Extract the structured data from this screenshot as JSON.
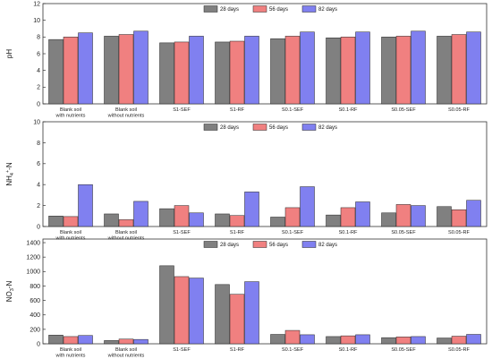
{
  "chart_data": [
    {
      "type": "bar",
      "ylabel": "pH",
      "ylim": [
        0,
        12
      ],
      "yticks": [
        0,
        2,
        4,
        6,
        8,
        10,
        12
      ],
      "legend": "top-center",
      "categories": [
        "Blank soil\nwith nutrients",
        "Blank soil\nwithout nutrients",
        "S1-SEF",
        "S1-RF",
        "S0.1-SEF",
        "S0.1-RF",
        "S0.05-SEF",
        "S0.05-RF"
      ],
      "series": [
        {
          "name": "28 days",
          "values": [
            7.7,
            8.1,
            7.3,
            7.4,
            7.8,
            7.9,
            8.0,
            8.1
          ]
        },
        {
          "name": "56 days",
          "values": [
            8.0,
            8.3,
            7.4,
            7.5,
            8.1,
            8.0,
            8.1,
            8.3
          ]
        },
        {
          "name": "82 days",
          "values": [
            8.5,
            8.7,
            8.1,
            8.1,
            8.6,
            8.6,
            8.7,
            8.6
          ]
        }
      ]
    },
    {
      "type": "bar",
      "ylabel": "NH4+-N",
      "ylim": [
        0,
        10
      ],
      "yticks": [
        0,
        2,
        4,
        6,
        8,
        10
      ],
      "legend": "top-center",
      "categories": [
        "Blank soil\nwith nutrients",
        "Blank soil\nwithout nutrients",
        "S1-SEF",
        "S1-RF",
        "S0.1-SEF",
        "S0.1-RF",
        "S0.05-SEF",
        "S0.05-RF"
      ],
      "series": [
        {
          "name": "28 days",
          "values": [
            1.0,
            1.2,
            1.7,
            1.2,
            0.9,
            1.1,
            1.3,
            1.9
          ]
        },
        {
          "name": "56 days",
          "values": [
            0.95,
            0.65,
            2.0,
            1.05,
            1.8,
            1.8,
            2.1,
            1.6
          ]
        },
        {
          "name": "82 days",
          "values": [
            4.0,
            2.4,
            1.3,
            3.3,
            3.8,
            2.35,
            2.0,
            2.5
          ]
        }
      ]
    },
    {
      "type": "bar",
      "ylabel": "NO3-N",
      "ylim": [
        0,
        1450
      ],
      "yticks": [
        0,
        200,
        400,
        600,
        800,
        1000,
        1200,
        1400
      ],
      "legend": "top-center",
      "categories": [
        "Blank soil\nwith nutrients",
        "Blank soil\nwithout nutrients",
        "S1-SEF",
        "S1-RF",
        "S0.1-SEF",
        "S0.1-RF",
        "S0.05-SEF",
        "S0.05-RF"
      ],
      "series": [
        {
          "name": "28 days",
          "values": [
            120,
            45,
            1080,
            820,
            130,
            100,
            85,
            80
          ]
        },
        {
          "name": "56 days",
          "values": [
            100,
            65,
            930,
            685,
            185,
            110,
            95,
            105
          ]
        },
        {
          "name": "82 days",
          "values": [
            115,
            60,
            910,
            860,
            125,
            125,
            100,
            130
          ]
        }
      ]
    }
  ],
  "colors": [
    "#808080",
    "#f08080",
    "#8080f0"
  ]
}
